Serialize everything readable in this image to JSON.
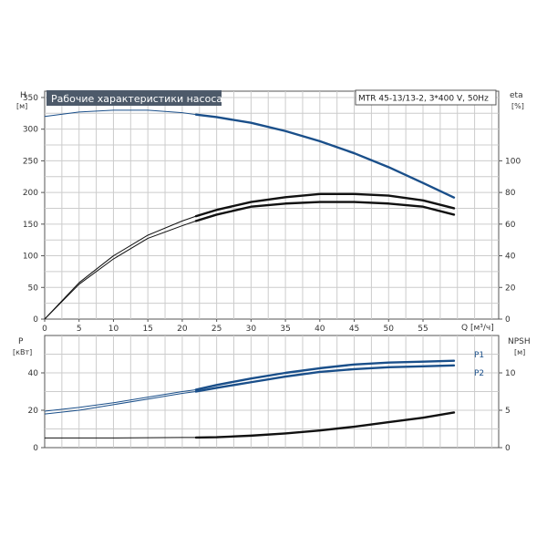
{
  "colors": {
    "grid": "#cccccc",
    "axis": "#555555",
    "blue": "#1a4f8a",
    "black": "#111111",
    "title_bg": "#4d5a6a"
  },
  "chart_data": [
    {
      "id": "upper",
      "type": "line",
      "title": "Рабочие характеристики насоса",
      "info": "MTR 45-13/13-2, 3*400 V, 50Hz",
      "y_label": "H",
      "y_unit": "[м]",
      "y_right_label": "eta",
      "y_right_unit": "[%]",
      "x_label": "Q [м³/ч]",
      "xlim": [
        0,
        66
      ],
      "ylim": [
        0,
        360
      ],
      "y_right_lim": [
        0,
        144
      ],
      "x_ticks": [
        "0",
        "5",
        "10",
        "15",
        "20",
        "25",
        "30",
        "35",
        "40",
        "45",
        "50",
        "55"
      ],
      "y_ticks": [
        "0",
        "50",
        "100",
        "150",
        "200",
        "250",
        "300",
        "350"
      ],
      "y_right_ticks": [
        "0",
        "20",
        "40",
        "60",
        "80",
        "100"
      ],
      "series": [
        {
          "key": "H_curve",
          "axis": "left",
          "color": "blue",
          "x": [
            0,
            5,
            10,
            15,
            20,
            22,
            25,
            30,
            35,
            40,
            45,
            50,
            55,
            59.5
          ],
          "y": [
            320,
            327,
            330,
            330,
            326,
            323,
            319,
            310,
            297,
            281,
            262,
            240,
            215,
            192
          ]
        },
        {
          "key": "eta_outer",
          "axis": "right",
          "color": "black",
          "x": [
            0,
            5,
            10,
            15,
            20,
            22,
            25,
            30,
            35,
            40,
            45,
            50,
            55,
            59.5
          ],
          "y": [
            0,
            23,
            40,
            53,
            62,
            65,
            69,
            74,
            77,
            79,
            79,
            78,
            75,
            70
          ]
        },
        {
          "key": "eta_inner",
          "axis": "right",
          "color": "black",
          "x": [
            0,
            5,
            10,
            15,
            20,
            22,
            25,
            30,
            35,
            40,
            45,
            50,
            55,
            59.5
          ],
          "y": [
            0,
            22,
            38,
            51,
            59,
            62,
            66,
            71,
            73,
            74,
            74,
            73,
            71,
            66
          ]
        }
      ]
    },
    {
      "id": "lower",
      "type": "line",
      "y_label": "P",
      "y_unit": "[кВт]",
      "y_right_label": "NPSH",
      "y_right_unit": "[м]",
      "xlim": [
        0,
        66
      ],
      "ylim": [
        0,
        60
      ],
      "y_right_lim": [
        0,
        15
      ],
      "y_ticks": [
        "0",
        "20",
        "40"
      ],
      "y_right_ticks": [
        "0",
        "5",
        "10"
      ],
      "series": [
        {
          "key": "P1",
          "name": "P1",
          "axis": "left",
          "color": "blue",
          "x": [
            0,
            5,
            10,
            15,
            20,
            22,
            25,
            30,
            35,
            40,
            45,
            50,
            55,
            59.5
          ],
          "y": [
            19.5,
            21.5,
            24,
            27,
            30,
            31,
            33.5,
            37,
            40,
            42.5,
            44.5,
            45.5,
            46,
            46.5
          ]
        },
        {
          "key": "P2",
          "name": "P2",
          "axis": "left",
          "color": "blue",
          "x": [
            0,
            5,
            10,
            15,
            20,
            22,
            25,
            30,
            35,
            40,
            45,
            50,
            55,
            59.5
          ],
          "y": [
            18,
            20,
            23,
            26,
            29,
            30,
            32,
            35,
            38,
            40.5,
            42,
            43,
            43.5,
            44
          ]
        },
        {
          "key": "NPSH",
          "axis": "right",
          "color": "black",
          "x": [
            0,
            10,
            20,
            22,
            25,
            30,
            35,
            40,
            45,
            50,
            55,
            59.5
          ],
          "y": [
            1.3,
            1.3,
            1.35,
            1.35,
            1.4,
            1.6,
            1.9,
            2.3,
            2.8,
            3.4,
            4.0,
            4.7
          ]
        }
      ]
    }
  ]
}
